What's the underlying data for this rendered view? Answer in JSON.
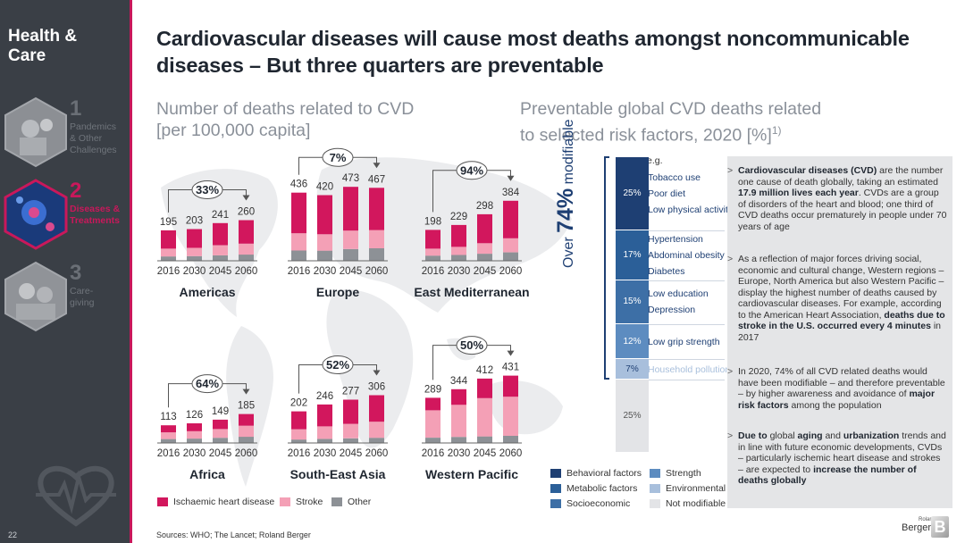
{
  "sidebar": {
    "brand": "Health & Care",
    "items": [
      {
        "num": "1",
        "label": "Pandemics\n& Other\nChallenges",
        "active": false
      },
      {
        "num": "2",
        "label": "Diseases &\nTreatments",
        "active": true
      },
      {
        "num": "3",
        "label": "Care-\ngiving",
        "active": false
      }
    ],
    "page_number": "22"
  },
  "title": "Cardiovascular diseases will cause most deaths amongst noncommunicable diseases – But three quarters are preventable",
  "left_subtitle": "Number of deaths related to CVD\n[per 100,000 capita]",
  "right_subtitle": "Preventable global CVD deaths related\nto selected risk factors, 2020 [%]",
  "right_subtitle_sup": "1)",
  "chart_data": [
    {
      "type": "bar",
      "stacked": true,
      "region": "Americas",
      "categories": [
        "2016",
        "2030",
        "2045",
        "2060"
      ],
      "totals": [
        195,
        203,
        241,
        260
      ],
      "growth": "33%",
      "series": [
        {
          "name": "Ischaemic heart disease",
          "values": [
            117,
            120,
            142,
            150
          ]
        },
        {
          "name": "Stroke",
          "values": [
            50,
            53,
            64,
            70
          ]
        },
        {
          "name": "Other",
          "values": [
            28,
            30,
            35,
            40
          ]
        }
      ]
    },
    {
      "type": "bar",
      "stacked": true,
      "region": "Europe",
      "categories": [
        "2016",
        "2030",
        "2045",
        "2060"
      ],
      "totals": [
        436,
        420,
        473,
        467
      ],
      "growth": "7%",
      "series": [
        {
          "name": "Ischaemic heart disease",
          "values": [
            260,
            250,
            280,
            270
          ]
        },
        {
          "name": "Stroke",
          "values": [
            110,
            105,
            118,
            117
          ]
        },
        {
          "name": "Other",
          "values": [
            66,
            65,
            75,
            80
          ]
        }
      ]
    },
    {
      "type": "bar",
      "stacked": true,
      "region": "East Mediterranean",
      "categories": [
        "2016",
        "2030",
        "2045",
        "2060"
      ],
      "totals": [
        198,
        229,
        298,
        384
      ],
      "growth": "94%",
      "series": [
        {
          "name": "Ischaemic heart disease",
          "values": [
            120,
            140,
            185,
            240
          ]
        },
        {
          "name": "Stroke",
          "values": [
            45,
            52,
            68,
            90
          ]
        },
        {
          "name": "Other",
          "values": [
            33,
            37,
            45,
            54
          ]
        }
      ]
    },
    {
      "type": "bar",
      "stacked": true,
      "region": "Africa",
      "categories": [
        "2016",
        "2030",
        "2045",
        "2060"
      ],
      "totals": [
        113,
        126,
        149,
        185
      ],
      "growth": "64%",
      "series": [
        {
          "name": "Ischaemic heart disease",
          "values": [
            45,
            50,
            60,
            75
          ]
        },
        {
          "name": "Stroke",
          "values": [
            43,
            48,
            56,
            70
          ]
        },
        {
          "name": "Other",
          "values": [
            25,
            28,
            33,
            40
          ]
        }
      ]
    },
    {
      "type": "bar",
      "stacked": true,
      "region": "South-East Asia",
      "categories": [
        "2016",
        "2030",
        "2045",
        "2060"
      ],
      "totals": [
        202,
        246,
        277,
        306
      ],
      "growth": "52%",
      "series": [
        {
          "name": "Ischaemic heart disease",
          "values": [
            115,
            140,
            155,
            170
          ]
        },
        {
          "name": "Stroke",
          "values": [
            65,
            80,
            92,
            103
          ]
        },
        {
          "name": "Other",
          "values": [
            22,
            26,
            30,
            33
          ]
        }
      ]
    },
    {
      "type": "bar",
      "stacked": true,
      "region": "Western Pacific",
      "categories": [
        "2016",
        "2030",
        "2045",
        "2060"
      ],
      "totals": [
        289,
        344,
        412,
        431
      ],
      "growth": "50%",
      "series": [
        {
          "name": "Ischaemic heart disease",
          "values": [
            80,
            100,
            125,
            135
          ]
        },
        {
          "name": "Stroke",
          "values": [
            175,
            205,
            245,
            250
          ]
        },
        {
          "name": "Other",
          "values": [
            34,
            39,
            42,
            46
          ]
        }
      ]
    }
  ],
  "region_legend": [
    {
      "name": "Ischaemic heart disease",
      "color": "#d2175d"
    },
    {
      "name": "Stroke",
      "color": "#f4a0b6"
    },
    {
      "name": "Other",
      "color": "#8d9196"
    }
  ],
  "risk_chart": {
    "type": "bar",
    "stacked": true,
    "total_label": "74%",
    "total_prefix": "Over",
    "total_suffix": "modifiable",
    "eg_label": "e.g.",
    "segments": [
      {
        "pct": "25%",
        "value": 25,
        "category": "Behavioral factors",
        "color": "#1e3f73",
        "factors": [
          "Tobacco use",
          "Poor diet",
          "Low physical activity"
        ]
      },
      {
        "pct": "17%",
        "value": 17,
        "category": "Metabolic factors",
        "color": "#2b5f98",
        "factors": [
          "Hypertension",
          "Abdominal obesity",
          "Diabetes"
        ]
      },
      {
        "pct": "15%",
        "value": 15,
        "category": "Socioeconomic",
        "color": "#3d6fa6",
        "factors": [
          "Low education",
          "Depression"
        ]
      },
      {
        "pct": "12%",
        "value": 12,
        "category": "Strength",
        "color": "#5d8cc0",
        "factors": [
          "Low grip strength"
        ]
      },
      {
        "pct": "7%",
        "value": 7,
        "category": "Environmental",
        "color": "#a8bfdc",
        "factors": [
          "Household pollution"
        ]
      },
      {
        "pct": "25%",
        "value": 25,
        "category": "Not modifiable",
        "color": "#e3e4e7",
        "factors": []
      }
    ]
  },
  "risk_legend": [
    {
      "name": "Behavioral factors",
      "color": "#1e3f73"
    },
    {
      "name": "Strength",
      "color": "#5d8cc0"
    },
    {
      "name": "Metabolic factors",
      "color": "#2b5f98"
    },
    {
      "name": "Environmental",
      "color": "#a8bfdc"
    },
    {
      "name": "Socioeconomic",
      "color": "#3d6fa6"
    },
    {
      "name": "Not modifiable",
      "color": "#e3e4e7"
    }
  ],
  "notes": [
    {
      "html": "<b>Cardiovascular diseases (CVD)</b> are the number one cause of death globally, taking an estimated <b>17.9 million lives each year</b>. CVDs are a group of disorders of the heart and blood; one third of CVD deaths occur prematurely in people under 70 years of age"
    },
    {
      "html": "As a reflection of major forces driving social, economic and cultural change, Western regions – Europe, North America but also Western Pacific – display the highest number of deaths caused by cardiovascular diseases. For example, according to the American Heart Association, <b>deaths due to stroke in the U.S. occurred every 4 minutes</b> in 2017"
    },
    {
      "html": "In 2020, 74% of all CVD related deaths would have been modifiable – and therefore preventable – by higher awareness and avoidance of <b>major risk factors</b> among the population"
    },
    {
      "html": "<b>Due to</b> global <b>aging</b> and <b>urbanization</b> trends and in line with future economic developments, CVDs – particularly ischemic heart disease and strokes – are expected to <b>increase the number of deaths globally</b>"
    }
  ],
  "sources": "Sources: WHO; The Lancet; Roland Berger",
  "logo": {
    "small": "Roland",
    "big": "Berger",
    "mark": "B"
  }
}
